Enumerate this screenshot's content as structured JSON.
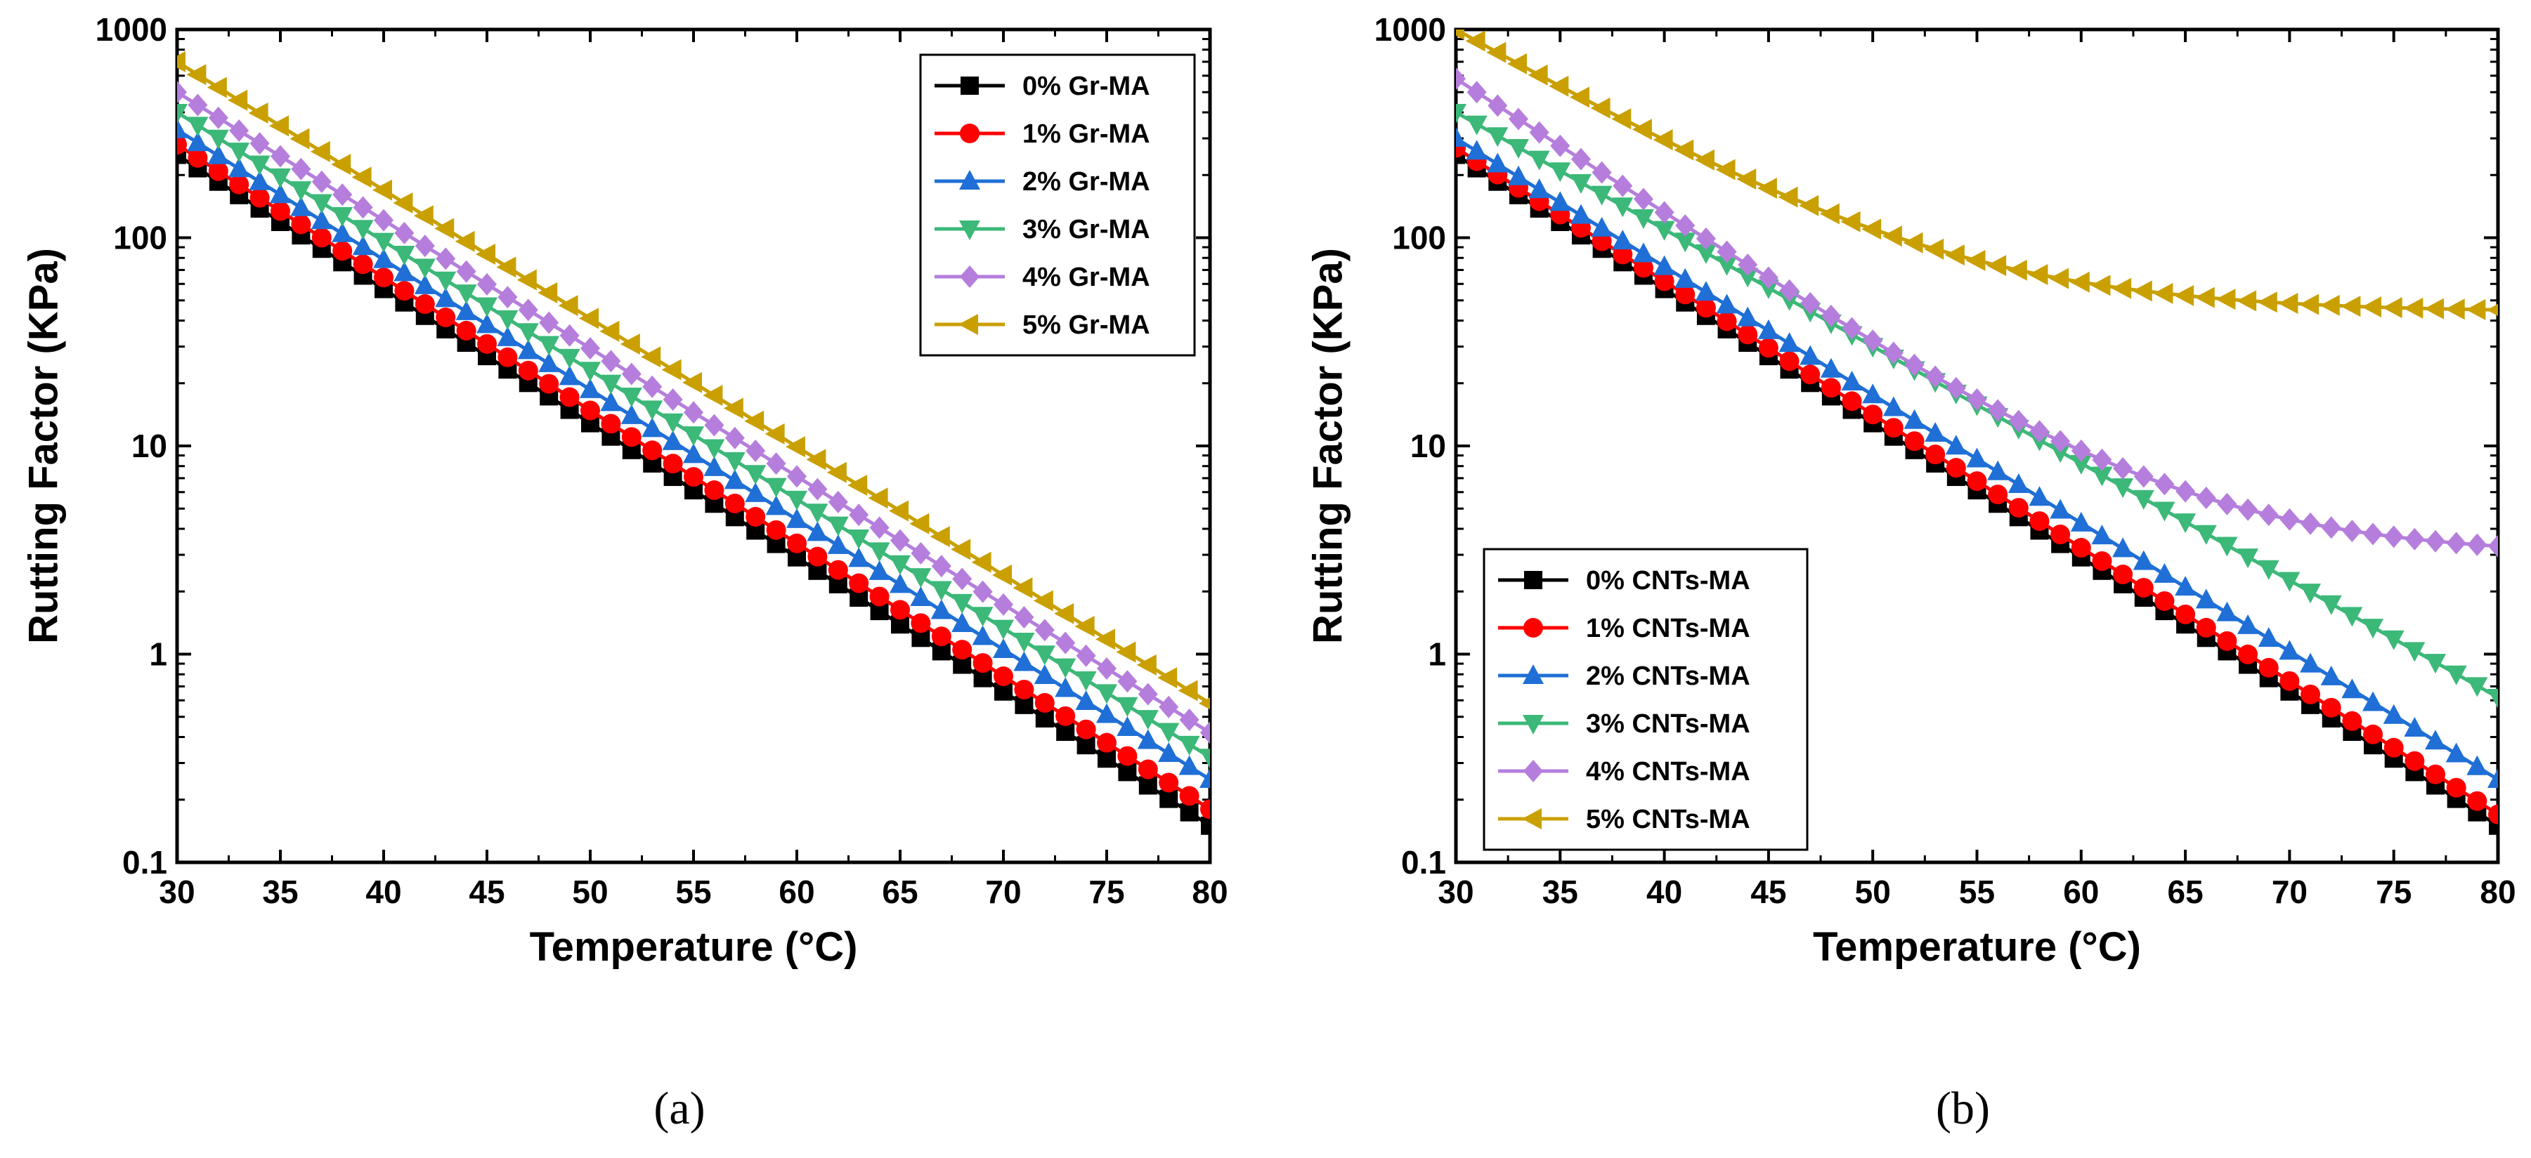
{
  "chart_data": [
    {
      "type": "line",
      "panel_label": "(a)",
      "xlabel": "Temperature (°C)",
      "ylabel": "Rutting Factor (KPa)",
      "x_scale": "linear",
      "y_scale": "log",
      "xlim": [
        30,
        80
      ],
      "ylim": [
        0.1,
        1000
      ],
      "x_ticks": [
        "30",
        "35",
        "40",
        "45",
        "50",
        "55",
        "60",
        "65",
        "70",
        "75",
        "80"
      ],
      "y_ticks": [
        "0.1",
        "1",
        "10",
        "100",
        "1000"
      ],
      "legend_location": "top-right",
      "series": [
        {
          "name": "0% Gr-MA",
          "color": "#000000",
          "marker": "square",
          "start_value": 250,
          "end_value": 0.15,
          "shape": "log-linear"
        },
        {
          "name": "1% Gr-MA",
          "color": "#ff0000",
          "marker": "circle",
          "start_value": 280,
          "end_value": 0.18,
          "shape": "log-linear"
        },
        {
          "name": "2% Gr-MA",
          "color": "#1f6fd6",
          "marker": "triangle-up",
          "start_value": 330,
          "end_value": 0.25,
          "shape": "log-linear"
        },
        {
          "name": "3% Gr-MA",
          "color": "#3cb878",
          "marker": "triangle-down",
          "start_value": 400,
          "end_value": 0.32,
          "shape": "log-linear"
        },
        {
          "name": "4% Gr-MA",
          "color": "#b57edc",
          "marker": "diamond",
          "start_value": 500,
          "end_value": 0.42,
          "shape": "log-linear"
        },
        {
          "name": "5% Gr-MA",
          "color": "#c9a000",
          "marker": "triangle-left",
          "start_value": 700,
          "end_value": 0.58,
          "shape": "log-linear"
        }
      ]
    },
    {
      "type": "line",
      "panel_label": "(b)",
      "xlabel": "Temperature (°C)",
      "ylabel": "Rutting Factor (KPa)",
      "x_scale": "linear",
      "y_scale": "log",
      "xlim": [
        30,
        80
      ],
      "ylim": [
        0.1,
        1000
      ],
      "x_ticks": [
        "30",
        "35",
        "40",
        "45",
        "50",
        "55",
        "60",
        "65",
        "70",
        "75",
        "80"
      ],
      "y_ticks": [
        "0.1",
        "1",
        "10",
        "100",
        "1000"
      ],
      "legend_location": "bottom-left",
      "series": [
        {
          "name": "0% CNTs-MA",
          "color": "#000000",
          "marker": "square",
          "start_value": 250,
          "end_value": 0.15,
          "shape": "log-linear"
        },
        {
          "name": "1% CNTs-MA",
          "color": "#ff0000",
          "marker": "circle",
          "start_value": 270,
          "end_value": 0.17,
          "shape": "log-linear"
        },
        {
          "name": "2% CNTs-MA",
          "color": "#1f6fd6",
          "marker": "triangle-up",
          "start_value": 300,
          "end_value": 0.25,
          "shape": "log-linear"
        },
        {
          "name": "3% CNTs-MA",
          "color": "#3cb878",
          "marker": "triangle-down",
          "start_value": 400,
          "end_value": 0.62,
          "shape": "log-linear"
        },
        {
          "name": "4% CNTs-MA",
          "color": "#b57edc",
          "marker": "diamond",
          "start_value": 580,
          "end_value": 3.3,
          "shape": "saturating",
          "mid_value": 32
        },
        {
          "name": "5% CNTs-MA",
          "color": "#c9a000",
          "marker": "triangle-left",
          "start_value": 1000,
          "end_value": 45,
          "shape": "saturating",
          "mid_value": 110
        }
      ]
    }
  ]
}
